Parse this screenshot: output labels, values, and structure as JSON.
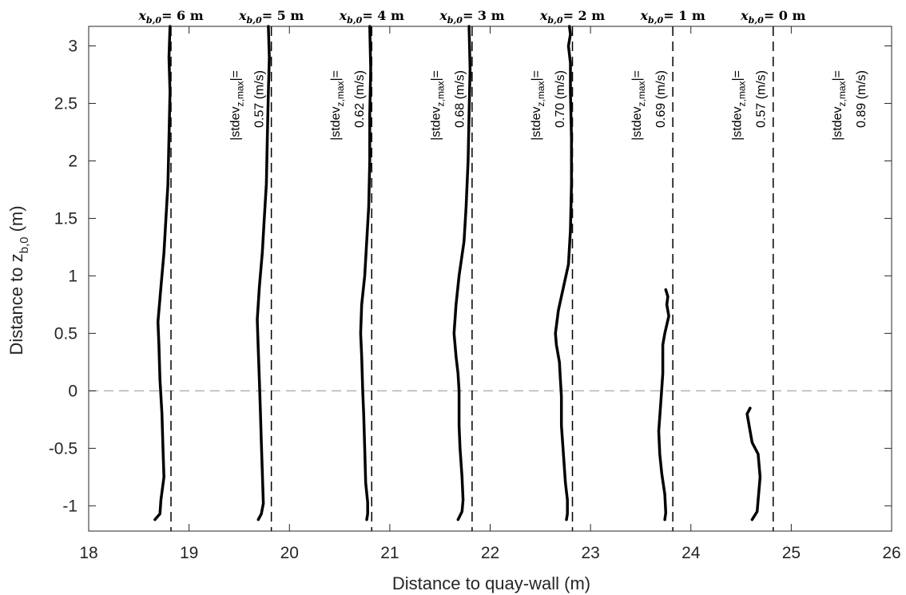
{
  "chart_data": {
    "type": "line",
    "xlabel": "Distance to quay-wall (m)",
    "ylabel": "Distance to z",
    "ylabel_sub": "b,0",
    "ylabel_unit": " (m)",
    "xlim": [
      18,
      26
    ],
    "ylim": [
      -1.22,
      3.17
    ],
    "xticks": [
      18,
      19,
      20,
      21,
      22,
      23,
      24,
      25,
      26
    ],
    "yticks": [
      -1,
      -0.5,
      0,
      0.5,
      1,
      1.5,
      2,
      2.5,
      3
    ],
    "xtick_labels": [
      "18",
      "19",
      "20",
      "21",
      "22",
      "23",
      "24",
      "25",
      "26"
    ],
    "ytick_labels": [
      "-1",
      "-0.5",
      "0",
      "0.5",
      "1",
      "1.5",
      "2",
      "2.5",
      "3"
    ],
    "grid": false,
    "reference_line_y": 0,
    "vertical_lines_x": [
      18.82,
      19.82,
      20.82,
      21.82,
      22.82,
      23.82,
      24.82
    ],
    "top_labels": [
      {
        "x": 18.82,
        "prefix": "x",
        "sub": "b,0",
        "text": "= 6 m"
      },
      {
        "x": 19.82,
        "prefix": "x",
        "sub": "b,0",
        "text": "= 5 m"
      },
      {
        "x": 20.82,
        "prefix": "x",
        "sub": "b,0",
        "text": "= 4 m"
      },
      {
        "x": 21.82,
        "prefix": "x",
        "sub": "b,0",
        "text": "= 3 m"
      },
      {
        "x": 22.82,
        "prefix": "x",
        "sub": "b,0",
        "text": "= 2 m"
      },
      {
        "x": 23.82,
        "prefix": "x",
        "sub": "b,0",
        "text": "= 1 m"
      },
      {
        "x": 24.82,
        "prefix": "x",
        "sub": "b,0",
        "text": "= 0 m"
      }
    ],
    "stdev_labels": [
      {
        "x": 19.22,
        "line1": "|stdev",
        "sub": "z,max",
        "line1_end": "|=",
        "line2": "0.57 (m/s)"
      },
      {
        "x": 20.22,
        "line1": "|stdev",
        "sub": "z,max",
        "line1_end": "|=",
        "line2": "0.62 (m/s)"
      },
      {
        "x": 21.22,
        "line1": "|stdev",
        "sub": "z,max",
        "line1_end": "|=",
        "line2": "0.68 (m/s)"
      },
      {
        "x": 22.22,
        "line1": "|stdev",
        "sub": "z,max",
        "line1_end": "|=",
        "line2": "0.70 (m/s)"
      },
      {
        "x": 23.22,
        "line1": "|stdev",
        "sub": "z,max",
        "line1_end": "|=",
        "line2": "0.69 (m/s)"
      },
      {
        "x": 24.22,
        "line1": "|stdev",
        "sub": "z,max",
        "line1_end": "|=",
        "line2": "0.57 (m/s)"
      },
      {
        "x": 25.22,
        "line1": "|stdev",
        "sub": "z,max",
        "line1_end": "|=",
        "line2": "0.89 (m/s)"
      }
    ],
    "series": [
      {
        "points": [
          [
            18.66,
            -1.12
          ],
          [
            18.71,
            -1.07
          ],
          [
            18.72,
            -0.95
          ],
          [
            18.75,
            -0.75
          ],
          [
            18.74,
            -0.5
          ],
          [
            18.73,
            -0.2
          ],
          [
            18.71,
            0.1
          ],
          [
            18.7,
            0.4
          ],
          [
            18.69,
            0.6
          ],
          [
            18.72,
            0.9
          ],
          [
            18.75,
            1.2
          ],
          [
            18.77,
            1.5
          ],
          [
            18.79,
            1.8
          ],
          [
            18.8,
            2.2
          ],
          [
            18.81,
            2.6
          ],
          [
            18.8,
            2.9
          ],
          [
            18.81,
            3.17
          ]
        ]
      },
      {
        "points": [
          [
            19.69,
            -1.12
          ],
          [
            19.72,
            -1.07
          ],
          [
            19.74,
            -0.98
          ],
          [
            19.73,
            -0.7
          ],
          [
            19.72,
            -0.45
          ],
          [
            19.71,
            -0.15
          ],
          [
            19.7,
            0.1
          ],
          [
            19.69,
            0.35
          ],
          [
            19.68,
            0.62
          ],
          [
            19.7,
            0.9
          ],
          [
            19.73,
            1.2
          ],
          [
            19.75,
            1.5
          ],
          [
            19.77,
            1.8
          ],
          [
            19.78,
            2.2
          ],
          [
            19.79,
            2.6
          ],
          [
            19.8,
            2.9
          ],
          [
            19.79,
            3.17
          ]
        ]
      },
      {
        "points": [
          [
            20.77,
            -1.12
          ],
          [
            20.78,
            -1.07
          ],
          [
            20.78,
            -0.97
          ],
          [
            20.76,
            -0.8
          ],
          [
            20.75,
            -0.5
          ],
          [
            20.74,
            -0.2
          ],
          [
            20.73,
            0.0
          ],
          [
            20.72,
            0.3
          ],
          [
            20.71,
            0.5
          ],
          [
            20.72,
            0.75
          ],
          [
            20.75,
            1.0
          ],
          [
            20.77,
            1.3
          ],
          [
            20.79,
            1.6
          ],
          [
            20.8,
            2.0
          ],
          [
            20.8,
            2.4
          ],
          [
            20.81,
            2.8
          ],
          [
            20.8,
            3.17
          ]
        ]
      },
      {
        "points": [
          [
            21.68,
            -1.12
          ],
          [
            21.72,
            -1.05
          ],
          [
            21.73,
            -0.95
          ],
          [
            21.72,
            -0.75
          ],
          [
            21.7,
            -0.5
          ],
          [
            21.69,
            -0.3
          ],
          [
            21.69,
            0.0
          ],
          [
            21.68,
            0.15
          ],
          [
            21.66,
            0.3
          ],
          [
            21.64,
            0.5
          ],
          [
            21.66,
            0.75
          ],
          [
            21.69,
            1.0
          ],
          [
            21.74,
            1.3
          ],
          [
            21.76,
            1.6
          ],
          [
            21.78,
            2.0
          ],
          [
            21.79,
            2.4
          ],
          [
            21.8,
            2.8
          ],
          [
            21.79,
            3.17
          ]
        ]
      },
      {
        "points": [
          [
            22.76,
            -1.12
          ],
          [
            22.77,
            -1.07
          ],
          [
            22.77,
            -0.95
          ],
          [
            22.75,
            -0.8
          ],
          [
            22.73,
            -0.55
          ],
          [
            22.71,
            -0.3
          ],
          [
            22.71,
            -0.05
          ],
          [
            22.7,
            0.1
          ],
          [
            22.69,
            0.25
          ],
          [
            22.66,
            0.4
          ],
          [
            22.65,
            0.5
          ],
          [
            22.68,
            0.7
          ],
          [
            22.73,
            0.9
          ],
          [
            22.78,
            1.1
          ],
          [
            22.8,
            1.4
          ],
          [
            22.81,
            1.8
          ],
          [
            22.81,
            2.2
          ],
          [
            22.8,
            2.6
          ],
          [
            22.8,
            2.85
          ],
          [
            22.78,
            3.0
          ],
          [
            22.8,
            3.1
          ],
          [
            22.79,
            3.17
          ]
        ]
      },
      {
        "points": [
          [
            23.74,
            -1.12
          ],
          [
            23.75,
            -1.06
          ],
          [
            23.74,
            -0.9
          ],
          [
            23.71,
            -0.72
          ],
          [
            23.69,
            -0.55
          ],
          [
            23.68,
            -0.35
          ],
          [
            23.7,
            -0.1
          ],
          [
            23.72,
            0.15
          ],
          [
            23.72,
            0.4
          ],
          [
            23.74,
            0.5
          ],
          [
            23.78,
            0.65
          ],
          [
            23.76,
            0.75
          ],
          [
            23.77,
            0.82
          ],
          [
            23.75,
            0.88
          ]
        ]
      },
      {
        "points": [
          [
            24.61,
            -1.12
          ],
          [
            24.66,
            -1.05
          ],
          [
            24.67,
            -0.95
          ],
          [
            24.69,
            -0.75
          ],
          [
            24.67,
            -0.55
          ],
          [
            24.61,
            -0.45
          ],
          [
            24.58,
            -0.3
          ],
          [
            24.56,
            -0.2
          ],
          [
            24.59,
            -0.15
          ]
        ]
      }
    ]
  }
}
